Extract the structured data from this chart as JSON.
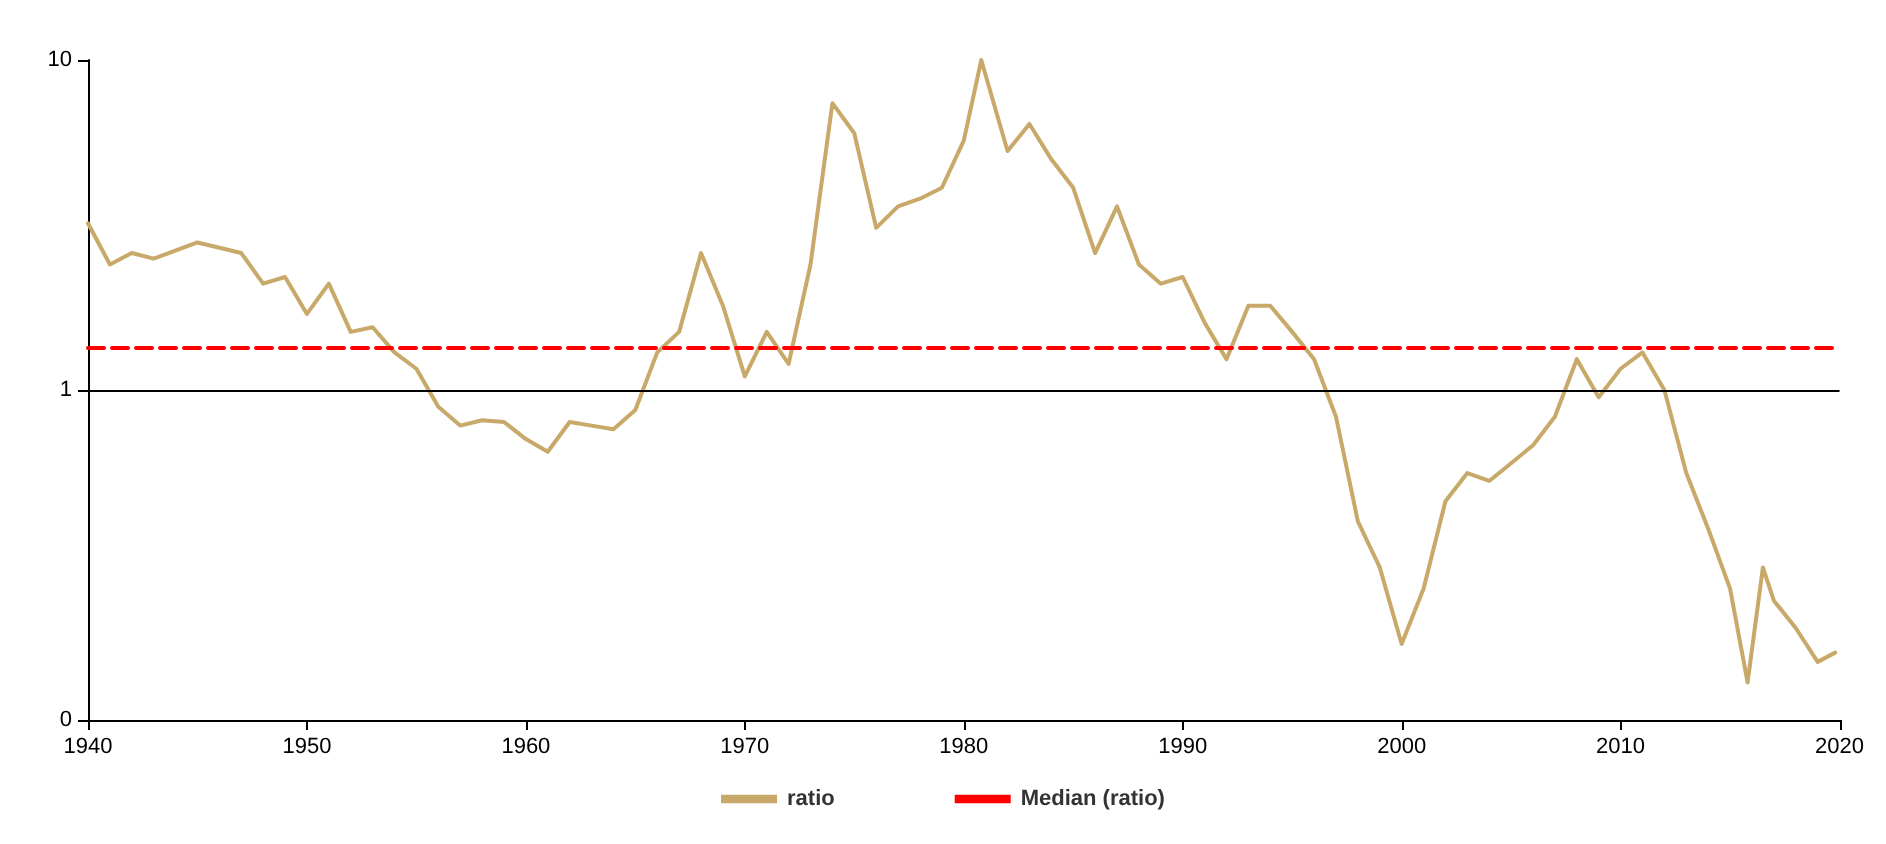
{
  "chart_data": {
    "type": "line",
    "log": "y",
    "legend": "bottom",
    "grid": false,
    "marker": "none",
    "xlim": [
      1940,
      2020
    ],
    "xticks": [
      1940,
      1950,
      1960,
      1970,
      1980,
      1990,
      2000,
      2010,
      2020
    ],
    "ylim": [
      0.1,
      10
    ],
    "yticks": [
      {
        "value": 0.1,
        "label": "0"
      },
      1,
      10
    ],
    "ref_lines": [
      {
        "axis": "y",
        "value": 1,
        "color": "#000000",
        "line_style": "solid"
      }
    ],
    "series": [
      {
        "name": "ratio",
        "color": "#c8a96a",
        "line_style": "solid",
        "x": [
          1940,
          1941,
          1942,
          1943,
          1945,
          1947,
          1948,
          1949,
          1950,
          1951,
          1952,
          1953,
          1954,
          1955,
          1956,
          1957,
          1958,
          1959,
          1960,
          1961,
          1962,
          1963,
          1964,
          1965,
          1966,
          1967,
          1968,
          1969,
          1970,
          1971,
          1972,
          1973,
          1974,
          1975,
          1976,
          1977,
          1978,
          1979,
          1980,
          1980.8,
          1981.5,
          1982,
          1983,
          1984,
          1985,
          1986,
          1987,
          1988,
          1989,
          1990,
          1991,
          1992,
          1993,
          1994,
          1995,
          1996,
          1997,
          1998,
          1999,
          2000,
          2001,
          2002,
          2003,
          2004,
          2005,
          2006,
          2007,
          2008,
          2009,
          2010,
          2011,
          2012,
          2013,
          2014,
          2015,
          2015.8,
          2016.5,
          2017,
          2018,
          2019,
          2019.8
        ],
        "values": [
          3.2,
          2.4,
          2.6,
          2.5,
          2.8,
          2.6,
          2.1,
          2.2,
          1.7,
          2.1,
          1.5,
          1.55,
          1.3,
          1.16,
          0.89,
          0.78,
          0.81,
          0.8,
          0.71,
          0.65,
          0.8,
          0.78,
          0.76,
          0.87,
          1.3,
          1.5,
          2.6,
          1.8,
          1.1,
          1.5,
          1.2,
          2.4,
          7.4,
          6.0,
          3.1,
          3.6,
          3.8,
          4.1,
          5.7,
          10,
          6.9,
          5.3,
          6.4,
          5.0,
          4.1,
          2.6,
          3.6,
          2.4,
          2.1,
          2.2,
          1.6,
          1.24,
          1.8,
          1.8,
          1.5,
          1.24,
          0.83,
          0.4,
          0.29,
          0.17,
          0.25,
          0.46,
          0.56,
          0.53,
          0.6,
          0.68,
          0.83,
          1.24,
          0.95,
          1.16,
          1.3,
          1.0,
          0.56,
          0.38,
          0.25,
          0.13,
          0.29,
          0.23,
          0.19,
          0.15,
          0.16
        ]
      },
      {
        "name": "Median (ratio)",
        "color": "#ff0000",
        "line_style": "dashed",
        "x": [
          1940,
          2020
        ],
        "values": [
          1.34,
          1.34
        ]
      }
    ]
  }
}
